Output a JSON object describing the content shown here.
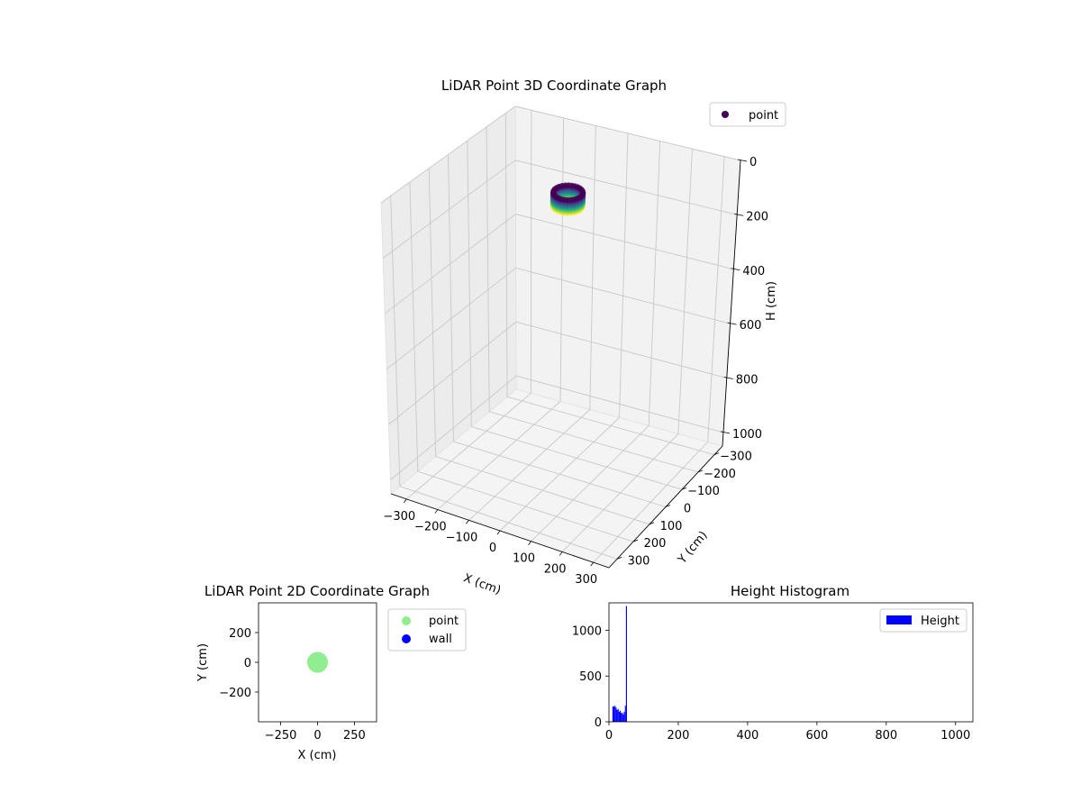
{
  "chart_data": [
    {
      "type": "scatter",
      "title": "LiDAR Point 3D Coordinate Graph",
      "xlabel": "X (cm)",
      "ylabel": "Y (cm)",
      "zlabel": "H (cm)",
      "x_ticks": [
        -300,
        -200,
        -100,
        0,
        100,
        200,
        300
      ],
      "y_ticks": [
        -300,
        -200,
        -100,
        0,
        100,
        200,
        300
      ],
      "z_ticks": [
        0,
        200,
        400,
        600,
        800,
        1000
      ],
      "xlim": [
        -350,
        350
      ],
      "ylim": [
        -350,
        350
      ],
      "zlim": [
        1050,
        0
      ],
      "grid": true,
      "legend": {
        "entries": [
          {
            "label": "point",
            "color": "#440154"
          }
        ],
        "location": "upper-right"
      },
      "series": [
        {
          "name": "point",
          "colormap": "viridis",
          "shape": "ring",
          "center": [
            0,
            0
          ],
          "radius": 40,
          "h_range": [
            10,
            58
          ]
        }
      ]
    },
    {
      "type": "scatter",
      "title": "LiDAR Point 2D Coordinate Graph",
      "xlabel": "X (cm)",
      "ylabel": "Y (cm)",
      "x_ticks": [
        -250,
        0,
        250
      ],
      "y_ticks": [
        -200,
        0,
        200
      ],
      "xlim": [
        -400,
        400
      ],
      "ylim": [
        -400,
        400
      ],
      "legend": {
        "entries": [
          {
            "label": "point",
            "color": "#90ee90"
          },
          {
            "label": "wall",
            "color": "#0000ff"
          }
        ],
        "location": "outside-right"
      },
      "series": [
        {
          "name": "point",
          "color": "#90ee90",
          "center": [
            0,
            0
          ],
          "radius": 40
        },
        {
          "name": "wall",
          "color": "#0000ff",
          "points": []
        }
      ]
    },
    {
      "type": "bar",
      "title": "Height Histogram",
      "xlim": [
        0,
        1050
      ],
      "ylim": [
        0,
        1300
      ],
      "x_ticks": [
        0,
        200,
        400,
        600,
        800,
        1000
      ],
      "y_ticks": [
        0,
        500,
        1000
      ],
      "legend": {
        "entries": [
          {
            "label": "Height",
            "color": "#0000ff"
          }
        ],
        "location": "upper-right"
      },
      "series": [
        {
          "name": "Height",
          "color": "#0000ff",
          "bin_width": 3,
          "bins": [
            {
              "x": 10,
              "value": 170
            },
            {
              "x": 13,
              "value": 165
            },
            {
              "x": 16,
              "value": 175
            },
            {
              "x": 19,
              "value": 155
            },
            {
              "x": 22,
              "value": 130
            },
            {
              "x": 25,
              "value": 140
            },
            {
              "x": 28,
              "value": 110
            },
            {
              "x": 31,
              "value": 120
            },
            {
              "x": 34,
              "value": 95
            },
            {
              "x": 37,
              "value": 100
            },
            {
              "x": 40,
              "value": 80
            },
            {
              "x": 43,
              "value": 110
            },
            {
              "x": 46,
              "value": 175
            },
            {
              "x": 49,
              "value": 1265
            }
          ]
        }
      ]
    }
  ]
}
